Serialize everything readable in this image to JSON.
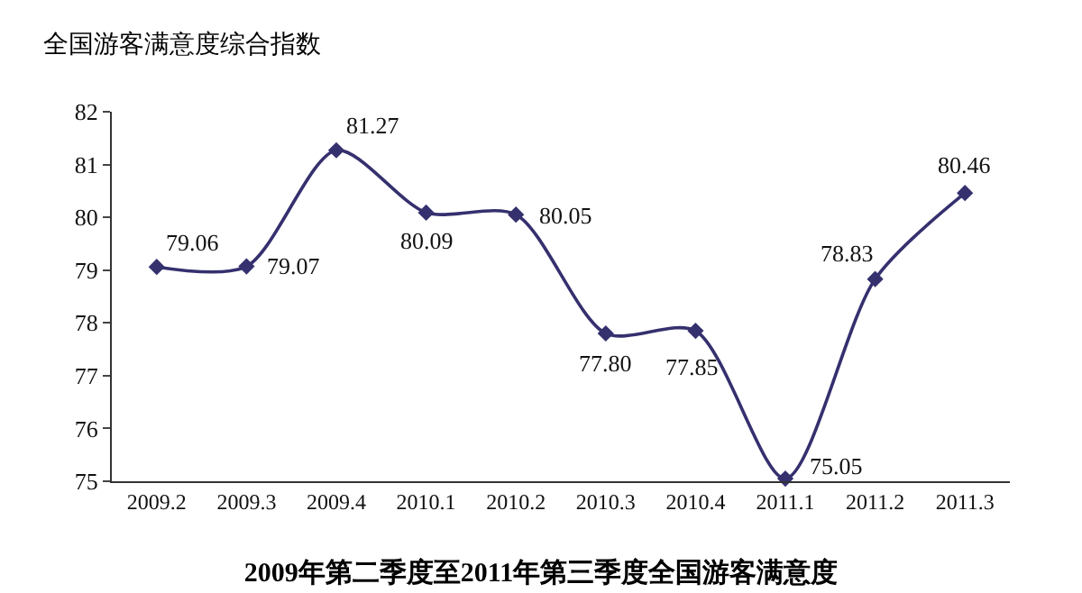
{
  "chart_data": {
    "type": "line",
    "title": "2009年第二季度至2011年第三季度全国游客满意度",
    "ylabel": "全国游客满意度综合指数",
    "categories": [
      "2009.2",
      "2009.3",
      "2009.4",
      "2010.1",
      "2010.2",
      "2010.3",
      "2010.4",
      "2011.1",
      "2011.2",
      "2011.3"
    ],
    "series": [
      {
        "color": "#35306e",
        "values": [
          79.06,
          79.07,
          81.27,
          80.09,
          80.05,
          77.8,
          77.85,
          75.05,
          78.83,
          80.46
        ],
        "value_labels": [
          "79.06",
          "79.07",
          "81.27",
          "80.09",
          "80.05",
          "77.80",
          "77.85",
          "75.05",
          "78.83",
          "80.46"
        ]
      }
    ],
    "ylim": [
      75,
      82
    ],
    "yticks": [
      75,
      76,
      77,
      78,
      79,
      80,
      81,
      82
    ],
    "grid": false,
    "marker": "diamond",
    "line_style": "solid"
  }
}
